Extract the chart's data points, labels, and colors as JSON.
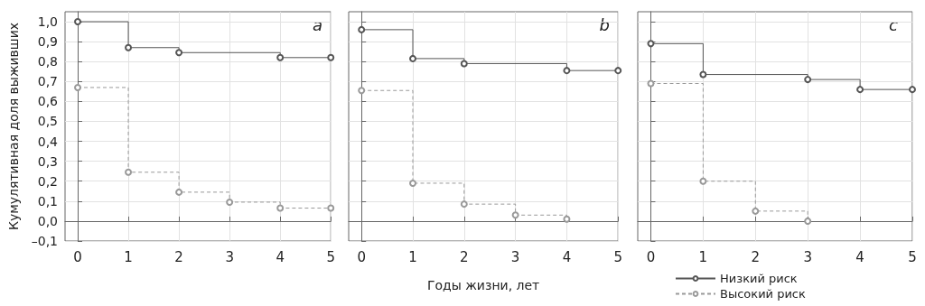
{
  "chart_data": [
    {
      "type": "step",
      "annotations": [
        "a"
      ],
      "ylabel": "Кумулятивная доля выживших",
      "xlim": [
        -0.25,
        5
      ],
      "xticks": [
        0,
        1,
        2,
        3,
        4,
        5
      ],
      "ylim": [
        -0.1,
        1.05
      ],
      "yticks": [
        {
          "value": -0.1,
          "label": "–0,1"
        },
        {
          "value": 0,
          "label": "0,0"
        },
        {
          "value": 0.1,
          "label": "0,1"
        },
        {
          "value": 0.2,
          "label": "0,2"
        },
        {
          "value": 0.3,
          "label": "0,3"
        },
        {
          "value": 0.4,
          "label": "0,4"
        },
        {
          "value": 0.5,
          "label": "0,5"
        },
        {
          "value": 0.6,
          "label": "0,6"
        },
        {
          "value": 0.7,
          "label": "0,7"
        },
        {
          "value": 0.8,
          "label": "0,8"
        },
        {
          "value": 0.9,
          "label": "0,9"
        },
        {
          "value": 1,
          "label": "1,0"
        }
      ],
      "grid": true,
      "legend": false,
      "marker": "circle",
      "series": [
        {
          "color": "#555555",
          "line_style": "solid",
          "x": [
            0,
            1,
            2,
            4,
            5
          ],
          "values": [
            1.0,
            0.87,
            0.845,
            0.82,
            0.82
          ]
        },
        {
          "color": "#999999",
          "line_style": "dashed",
          "x": [
            0,
            1,
            2,
            3,
            4,
            5
          ],
          "values": [
            0.67,
            0.245,
            0.145,
            0.095,
            0.065,
            0.065
          ]
        }
      ]
    },
    {
      "type": "step",
      "annotations": [
        "b"
      ],
      "xlabel": "Годы жизни, лет",
      "tick_labels": "x",
      "xlim": [
        -0.25,
        5
      ],
      "xticks": [
        0,
        1,
        2,
        3,
        4,
        5
      ],
      "ylim": [
        -0.1,
        1.05
      ],
      "yticks": [
        -0.1,
        0,
        0.1,
        0.2,
        0.3,
        0.4,
        0.5,
        0.6,
        0.7,
        0.8,
        0.9,
        1
      ],
      "grid": true,
      "legend": false,
      "marker": "circle",
      "series": [
        {
          "color": "#555555",
          "line_style": "solid",
          "x": [
            0,
            1,
            2,
            4,
            5
          ],
          "values": [
            0.96,
            0.815,
            0.79,
            0.755,
            0.755
          ]
        },
        {
          "color": "#999999",
          "line_style": "dashed",
          "x": [
            0,
            1,
            2,
            3,
            4
          ],
          "values": [
            0.655,
            0.19,
            0.085,
            0.03,
            0.01
          ]
        }
      ]
    },
    {
      "type": "step",
      "annotations": [
        "c"
      ],
      "tick_labels": "x",
      "xlim": [
        -0.25,
        5
      ],
      "xticks": [
        0,
        1,
        2,
        3,
        4,
        5
      ],
      "ylim": [
        -0.1,
        1.05
      ],
      "yticks": [
        -0.1,
        0,
        0.1,
        0.2,
        0.3,
        0.4,
        0.5,
        0.6,
        0.7,
        0.8,
        0.9,
        1
      ],
      "grid": true,
      "legend": "bottom",
      "marker": "circle",
      "series": [
        {
          "name": "Низкий риск",
          "color": "#555555",
          "line_style": "solid",
          "x": [
            0,
            1,
            3,
            4,
            5
          ],
          "values": [
            0.89,
            0.735,
            0.71,
            0.66,
            0.66
          ]
        },
        {
          "name": "Высокий риск",
          "color": "#999999",
          "line_style": "dashed",
          "x": [
            0,
            1,
            2,
            3
          ],
          "values": [
            0.69,
            0.2,
            0.05,
            0.0
          ]
        }
      ]
    }
  ]
}
